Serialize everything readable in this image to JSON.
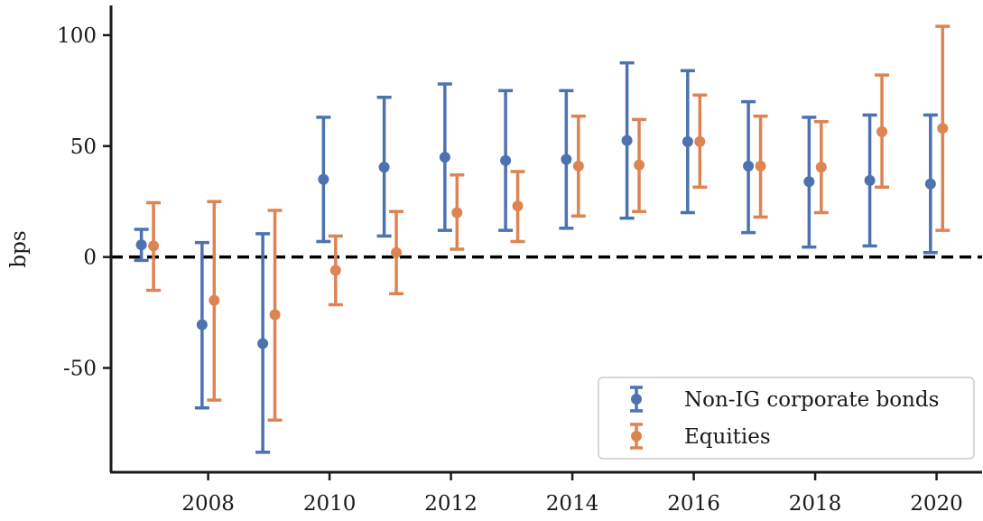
{
  "chart_data": {
    "type": "scatter",
    "title": "",
    "xlabel": "",
    "ylabel": "bps",
    "xlim": [
      2006.4,
      2020.75
    ],
    "ylim": [
      -97,
      113
    ],
    "xticks": [
      2008,
      2010,
      2012,
      2014,
      2016,
      2018,
      2020
    ],
    "xtick_labels": [
      "2008",
      "2010",
      "2012",
      "2014",
      "2016",
      "2018",
      "2020"
    ],
    "yticks": [
      -50,
      0,
      50,
      100
    ],
    "ytick_labels": [
      "-50",
      "0",
      "50",
      "100"
    ],
    "reference_line": {
      "y": 0,
      "style": "dashed",
      "color": "#000000"
    },
    "grid": false,
    "legend_position": "lower-right",
    "series": [
      {
        "name": "Non-IG corporate bonds",
        "color": "#4c72b0",
        "x": [
          2007,
          2008,
          2009,
          2010,
          2011,
          2012,
          2013,
          2014,
          2015,
          2016,
          2017,
          2018,
          2019,
          2020
        ],
        "y": [
          5.5,
          -30.5,
          -39,
          35,
          40.5,
          45,
          43.5,
          44,
          52.5,
          52,
          41,
          34,
          34.5,
          33
        ],
        "lower": [
          -1.5,
          -68,
          -88,
          7,
          9.5,
          12,
          12,
          13,
          17.5,
          20,
          11,
          4.5,
          5,
          2
        ],
        "upper": [
          12.5,
          6.5,
          10.5,
          63,
          72,
          78,
          75,
          75,
          87.5,
          84,
          70,
          63,
          64,
          64
        ]
      },
      {
        "name": "Equities",
        "color": "#dd8452",
        "x": [
          2007,
          2008,
          2009,
          2010,
          2011,
          2012,
          2013,
          2014,
          2015,
          2016,
          2017,
          2018,
          2019,
          2020
        ],
        "y": [
          5,
          -19.5,
          -26,
          -6,
          2,
          20,
          23,
          41,
          41.5,
          52,
          41,
          40.5,
          56.5,
          58
        ],
        "lower": [
          -15,
          -64.5,
          -73.5,
          -21.5,
          -16.5,
          3.5,
          7,
          18.5,
          20.5,
          31.5,
          18,
          20,
          31.5,
          12
        ],
        "upper": [
          24.5,
          25,
          21,
          9.5,
          20.5,
          37,
          38.5,
          63.5,
          62,
          73,
          63.5,
          61,
          82,
          104
        ]
      }
    ]
  }
}
